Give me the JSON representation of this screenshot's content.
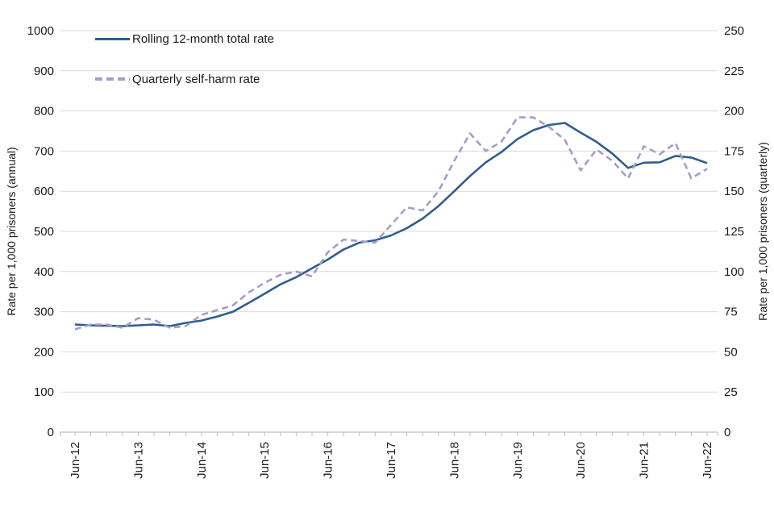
{
  "chart_data": {
    "type": "line",
    "title": "",
    "categories": [
      "Jun-12",
      "Sep-12",
      "Dec-12",
      "Mar-13",
      "Jun-13",
      "Sep-13",
      "Dec-13",
      "Mar-14",
      "Jun-14",
      "Sep-14",
      "Dec-14",
      "Mar-15",
      "Jun-15",
      "Sep-15",
      "Dec-15",
      "Mar-16",
      "Jun-16",
      "Sep-16",
      "Dec-16",
      "Mar-17",
      "Jun-17",
      "Sep-17",
      "Dec-17",
      "Mar-18",
      "Jun-18",
      "Sep-18",
      "Dec-18",
      "Mar-19",
      "Jun-19",
      "Sep-19",
      "Dec-19",
      "Mar-20",
      "Jun-20",
      "Sep-20",
      "Dec-20",
      "Mar-21",
      "Jun-21",
      "Sep-21",
      "Dec-21",
      "Mar-22",
      "Jun-22"
    ],
    "x_label_every": 4,
    "x_tick_labels_shown": [
      "Jun-12",
      "Jun-13",
      "Jun-14",
      "Jun-15",
      "Jun-16",
      "Jun-17",
      "Jun-18",
      "Jun-19",
      "Jun-20",
      "Jun-21",
      "Jun-22"
    ],
    "left_axis": {
      "title": "Rate per 1,000 prisoners (annual)",
      "min": 0,
      "max": 1000,
      "step": 100
    },
    "right_axis": {
      "title": "Rate per 1,000 prisoners (quarterly)",
      "min": 0,
      "max": 250,
      "step": 25
    },
    "grid": "horizontal",
    "legend": {
      "position": "top-left-inside"
    },
    "series": [
      {
        "name": "Rolling 12-month total rate",
        "axis": "left",
        "line_style": "solid",
        "color": "#2e5e90",
        "values": [
          268,
          266,
          265,
          264,
          266,
          268,
          264,
          272,
          278,
          288,
          300,
          322,
          345,
          368,
          386,
          408,
          430,
          455,
          472,
          478,
          490,
          508,
          532,
          563,
          600,
          638,
          672,
          698,
          730,
          752,
          765,
          770,
          746,
          723,
          694,
          658,
          671,
          672,
          688,
          684,
          670
        ]
      },
      {
        "name": "Quarterly self-harm rate",
        "axis": "right",
        "line_style": "dashed",
        "color": "#a89cc8",
        "values": [
          64,
          67,
          67,
          65,
          71,
          70,
          65,
          66,
          73,
          76,
          79,
          87,
          93,
          98,
          100,
          97,
          112,
          120,
          119,
          118,
          129,
          140,
          138,
          150,
          169,
          186,
          175,
          181,
          196,
          196,
          190,
          182,
          163,
          176,
          169,
          158,
          178,
          173,
          180,
          158,
          164
        ]
      }
    ],
    "colors": {
      "gridline": "#d9d9d9",
      "axis_line": "#bfbfbf",
      "text": "#1a1a1a"
    }
  }
}
